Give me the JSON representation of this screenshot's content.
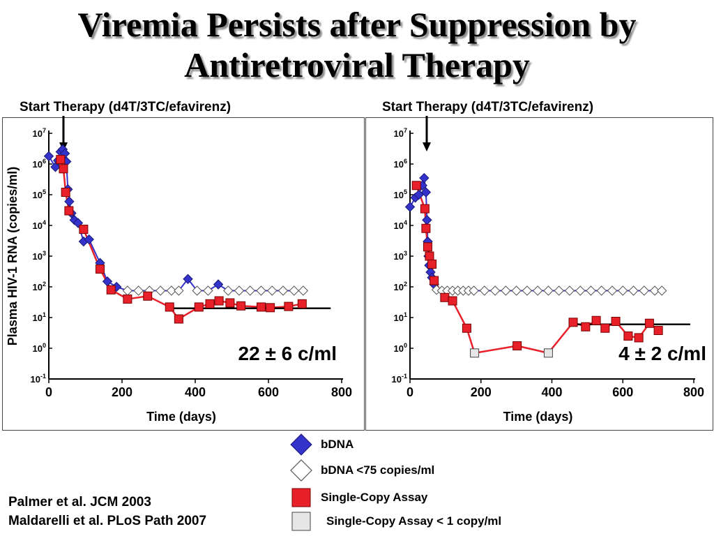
{
  "title_line1": "Viremia Persists after Suppression by",
  "title_line2": "Antiretroviral Therapy",
  "references": [
    "Palmer et al. JCM 2003",
    "Maldarelli et al. PLoS Path 2007"
  ],
  "colors": {
    "bdna": "#3333cc",
    "sca": "#e8202a",
    "below": "#e6e6e6",
    "median": "#000000"
  },
  "legend": [
    {
      "label": "bDNA",
      "marker": "diamond-filled"
    },
    {
      "label": "bDNA <75 copies/ml",
      "marker": "diamond-open"
    },
    {
      "label": "Single-Copy Assay",
      "marker": "square-filled"
    },
    {
      "label": "Single-Copy Assay < 1 copy/ml",
      "marker": "square-open"
    }
  ],
  "chart_data": [
    {
      "type": "line",
      "therapy_label": "Start Therapy (d4T/3TC/efavirenz)",
      "therapy_start_day": 40,
      "annotation": "22 ± 6 c/ml",
      "xlabel": "Time (days)",
      "ylabel": "Plasma HIV-1 RNA (copies/ml)",
      "xlim": [
        0,
        800
      ],
      "ylim_log10": [
        -1,
        7
      ],
      "yscale": "log",
      "x_ticks": [
        "0",
        "200",
        "400",
        "600",
        "800"
      ],
      "y_ticks": [
        {
          "base": "10",
          "exp": "7"
        },
        {
          "base": "10",
          "exp": "6"
        },
        {
          "base": "10",
          "exp": "5"
        },
        {
          "base": "10",
          "exp": "4"
        },
        {
          "base": "10",
          "exp": "3"
        },
        {
          "base": "10",
          "exp": "2"
        },
        {
          "base": "10",
          "exp": "1"
        },
        {
          "base": "10",
          "exp": "0"
        },
        {
          "base": "10",
          "exp": "-1"
        }
      ],
      "median": {
        "from": 320,
        "to": 770,
        "value": 20
      },
      "series": [
        {
          "key": "bdna",
          "points": [
            {
              "x": 0,
              "y": 1800000,
              "below": false
            },
            {
              "x": 18,
              "y": 800000,
              "below": false
            },
            {
              "x": 25,
              "y": 1300000,
              "below": false
            },
            {
              "x": 32,
              "y": 2500000,
              "below": false
            },
            {
              "x": 38,
              "y": 3000000,
              "below": false
            },
            {
              "x": 44,
              "y": 2200000,
              "below": false
            },
            {
              "x": 48,
              "y": 1200000,
              "below": false
            },
            {
              "x": 52,
              "y": 150000,
              "below": false
            },
            {
              "x": 56,
              "y": 60000,
              "below": false
            },
            {
              "x": 62,
              "y": 25000,
              "below": false
            },
            {
              "x": 70,
              "y": 15000,
              "below": false
            },
            {
              "x": 80,
              "y": 12000,
              "below": false
            },
            {
              "x": 95,
              "y": 3000,
              "below": false
            },
            {
              "x": 110,
              "y": 3500,
              "below": false
            },
            {
              "x": 140,
              "y": 600,
              "below": false
            },
            {
              "x": 160,
              "y": 150,
              "below": false
            },
            {
              "x": 185,
              "y": 100,
              "below": false
            },
            {
              "x": 215,
              "y": 75,
              "below": true
            },
            {
              "x": 245,
              "y": 75,
              "below": true
            },
            {
              "x": 275,
              "y": 75,
              "below": true
            },
            {
              "x": 305,
              "y": 75,
              "below": true
            },
            {
              "x": 335,
              "y": 75,
              "below": true
            },
            {
              "x": 355,
              "y": 75,
              "below": true
            },
            {
              "x": 380,
              "y": 180,
              "below": false
            },
            {
              "x": 405,
              "y": 75,
              "below": true
            },
            {
              "x": 435,
              "y": 75,
              "below": true
            },
            {
              "x": 463,
              "y": 120,
              "below": false
            },
            {
              "x": 490,
              "y": 75,
              "below": true
            },
            {
              "x": 520,
              "y": 75,
              "below": true
            },
            {
              "x": 550,
              "y": 75,
              "below": true
            },
            {
              "x": 580,
              "y": 75,
              "below": true
            },
            {
              "x": 610,
              "y": 75,
              "below": true
            },
            {
              "x": 640,
              "y": 75,
              "below": true
            },
            {
              "x": 670,
              "y": 75,
              "below": true
            },
            {
              "x": 695,
              "y": 75,
              "below": true
            }
          ]
        },
        {
          "key": "sca",
          "points": [
            {
              "x": 32,
              "y": 1400000,
              "below": false
            },
            {
              "x": 40,
              "y": 700000,
              "below": false
            },
            {
              "x": 46,
              "y": 120000,
              "below": false
            },
            {
              "x": 55,
              "y": 30000,
              "below": false
            },
            {
              "x": 95,
              "y": 7500,
              "below": false
            },
            {
              "x": 140,
              "y": 380,
              "below": false
            },
            {
              "x": 170,
              "y": 80,
              "below": false
            },
            {
              "x": 215,
              "y": 40,
              "below": false
            },
            {
              "x": 270,
              "y": 50,
              "below": false
            },
            {
              "x": 330,
              "y": 22,
              "below": false
            },
            {
              "x": 355,
              "y": 9,
              "below": false
            },
            {
              "x": 410,
              "y": 22,
              "below": false
            },
            {
              "x": 440,
              "y": 28,
              "below": false
            },
            {
              "x": 465,
              "y": 35,
              "below": false
            },
            {
              "x": 495,
              "y": 30,
              "below": false
            },
            {
              "x": 525,
              "y": 24,
              "below": false
            },
            {
              "x": 580,
              "y": 22,
              "below": false
            },
            {
              "x": 605,
              "y": 21,
              "below": false
            },
            {
              "x": 655,
              "y": 23,
              "below": false
            },
            {
              "x": 692,
              "y": 28,
              "below": false
            }
          ]
        }
      ]
    },
    {
      "type": "line",
      "therapy_label": "Start Therapy (d4T/3TC/efavirenz)",
      "therapy_start_day": 45,
      "annotation": "4 ± 2 c/ml",
      "xlabel": "Time (days)",
      "xlim": [
        0,
        800
      ],
      "ylim_log10": [
        -1,
        7
      ],
      "yscale": "log",
      "x_ticks": [
        "0",
        "200",
        "400",
        "600",
        "800"
      ],
      "y_ticks": [
        {
          "base": "10",
          "exp": "7"
        },
        {
          "base": "10",
          "exp": "6"
        },
        {
          "base": "10",
          "exp": "5"
        },
        {
          "base": "10",
          "exp": "4"
        },
        {
          "base": "10",
          "exp": "3"
        },
        {
          "base": "10",
          "exp": "2"
        },
        {
          "base": "10",
          "exp": "1"
        },
        {
          "base": "10",
          "exp": "0"
        },
        {
          "base": "10",
          "exp": "-1"
        }
      ],
      "median": {
        "from": 450,
        "to": 790,
        "value": 6
      },
      "series": [
        {
          "key": "bdna",
          "points": [
            {
              "x": 0,
              "y": 40000,
              "below": false
            },
            {
              "x": 15,
              "y": 80000,
              "below": false
            },
            {
              "x": 25,
              "y": 100000,
              "below": false
            },
            {
              "x": 35,
              "y": 200000,
              "below": false
            },
            {
              "x": 40,
              "y": 350000,
              "below": false
            },
            {
              "x": 45,
              "y": 120000,
              "below": false
            },
            {
              "x": 48,
              "y": 15000,
              "below": false
            },
            {
              "x": 50,
              "y": 3000,
              "below": false
            },
            {
              "x": 52,
              "y": 1000,
              "below": false
            },
            {
              "x": 54,
              "y": 500,
              "below": false
            },
            {
              "x": 58,
              "y": 300,
              "below": false
            },
            {
              "x": 62,
              "y": 200,
              "below": false
            },
            {
              "x": 68,
              "y": 120,
              "below": false
            },
            {
              "x": 75,
              "y": 80,
              "below": true
            },
            {
              "x": 90,
              "y": 75,
              "below": true
            },
            {
              "x": 105,
              "y": 75,
              "below": true
            },
            {
              "x": 120,
              "y": 75,
              "below": true
            },
            {
              "x": 135,
              "y": 75,
              "below": true
            },
            {
              "x": 150,
              "y": 75,
              "below": true
            },
            {
              "x": 165,
              "y": 75,
              "below": true
            },
            {
              "x": 180,
              "y": 75,
              "below": true
            },
            {
              "x": 210,
              "y": 75,
              "below": true
            },
            {
              "x": 240,
              "y": 75,
              "below": true
            },
            {
              "x": 270,
              "y": 75,
              "below": true
            },
            {
              "x": 300,
              "y": 75,
              "below": true
            },
            {
              "x": 330,
              "y": 75,
              "below": true
            },
            {
              "x": 360,
              "y": 75,
              "below": true
            },
            {
              "x": 390,
              "y": 75,
              "below": true
            },
            {
              "x": 420,
              "y": 75,
              "below": true
            },
            {
              "x": 450,
              "y": 75,
              "below": true
            },
            {
              "x": 480,
              "y": 75,
              "below": true
            },
            {
              "x": 510,
              "y": 75,
              "below": true
            },
            {
              "x": 540,
              "y": 75,
              "below": true
            },
            {
              "x": 570,
              "y": 75,
              "below": true
            },
            {
              "x": 600,
              "y": 75,
              "below": true
            },
            {
              "x": 630,
              "y": 75,
              "below": true
            },
            {
              "x": 660,
              "y": 75,
              "below": true
            },
            {
              "x": 690,
              "y": 75,
              "below": true
            },
            {
              "x": 710,
              "y": 75,
              "below": true
            }
          ]
        },
        {
          "key": "sca",
          "points": [
            {
              "x": 18,
              "y": 200000,
              "below": false
            },
            {
              "x": 42,
              "y": 35000,
              "below": false
            },
            {
              "x": 45,
              "y": 8000,
              "below": false
            },
            {
              "x": 50,
              "y": 2000,
              "below": false
            },
            {
              "x": 55,
              "y": 1000,
              "below": false
            },
            {
              "x": 62,
              "y": 550,
              "below": false
            },
            {
              "x": 68,
              "y": 160,
              "below": false
            },
            {
              "x": 98,
              "y": 45,
              "below": false
            },
            {
              "x": 120,
              "y": 35,
              "below": false
            },
            {
              "x": 160,
              "y": 4.5,
              "below": false
            },
            {
              "x": 182,
              "y": 0.7,
              "below": true
            },
            {
              "x": 302,
              "y": 1.2,
              "below": false
            },
            {
              "x": 390,
              "y": 0.7,
              "below": true
            },
            {
              "x": 460,
              "y": 7,
              "below": false
            },
            {
              "x": 495,
              "y": 5,
              "below": false
            },
            {
              "x": 525,
              "y": 8,
              "below": false
            },
            {
              "x": 550,
              "y": 4.5,
              "below": false
            },
            {
              "x": 580,
              "y": 7.5,
              "below": false
            },
            {
              "x": 615,
              "y": 2.5,
              "below": false
            },
            {
              "x": 645,
              "y": 2.2,
              "below": false
            },
            {
              "x": 675,
              "y": 6.5,
              "below": false
            },
            {
              "x": 700,
              "y": 3.8,
              "below": false
            }
          ]
        }
      ]
    }
  ]
}
